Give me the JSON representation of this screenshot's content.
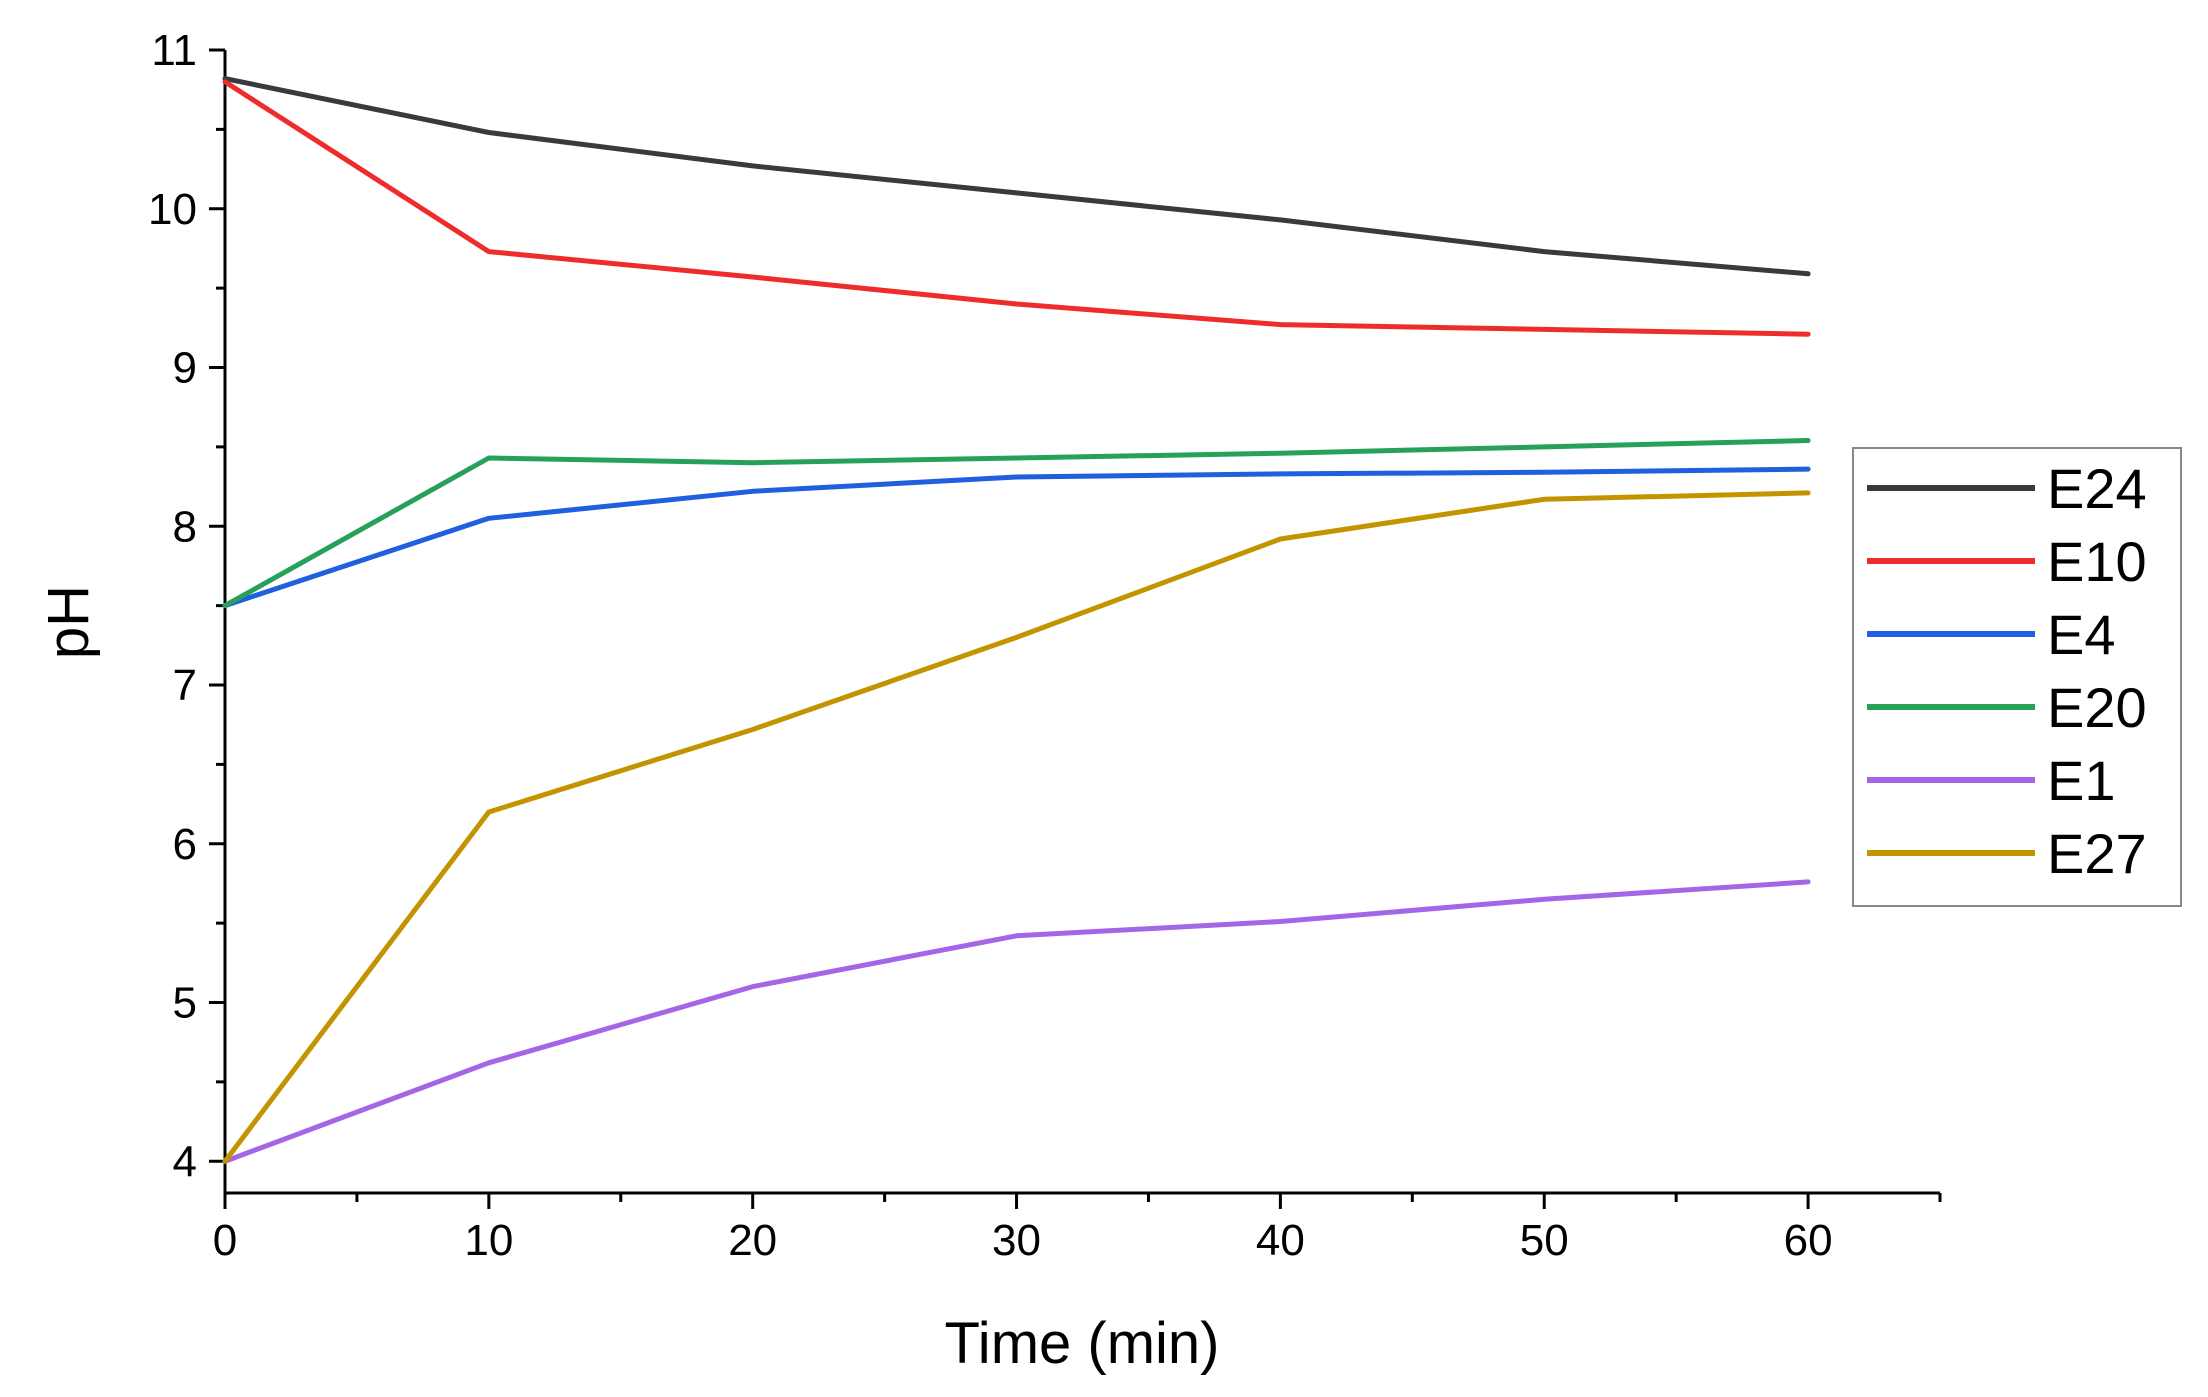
{
  "chart_data": {
    "type": "line",
    "title": "",
    "xlabel": "Time (min)",
    "ylabel": "pH",
    "x": [
      0,
      10,
      20,
      30,
      40,
      50,
      60
    ],
    "xlim": [
      0,
      65
    ],
    "ylim": [
      3.8,
      11
    ],
    "xticks": [
      0,
      10,
      20,
      30,
      40,
      50,
      60
    ],
    "xtick_labels": [
      "0",
      "10",
      "20",
      "30",
      "40",
      "50",
      "60"
    ],
    "yticks": [
      4,
      5,
      6,
      7,
      8,
      9,
      10,
      11
    ],
    "ytick_labels": [
      "4",
      "5",
      "6",
      "7",
      "8",
      "9",
      "10",
      "11"
    ],
    "legend_position": "right",
    "grid": false,
    "series": [
      {
        "name": "E24",
        "color": "#3a3a3a",
        "values": [
          10.82,
          10.48,
          10.27,
          10.1,
          9.93,
          9.73,
          9.59
        ]
      },
      {
        "name": "E10",
        "color": "#ee2c2c",
        "values": [
          10.8,
          9.73,
          9.57,
          9.4,
          9.27,
          9.24,
          9.21
        ]
      },
      {
        "name": "E4",
        "color": "#1f5fe0",
        "values": [
          7.5,
          8.05,
          8.22,
          8.31,
          8.33,
          8.34,
          8.36
        ]
      },
      {
        "name": "E20",
        "color": "#27a05a",
        "values": [
          7.5,
          8.43,
          8.4,
          8.43,
          8.46,
          8.5,
          8.54
        ]
      },
      {
        "name": "E1",
        "color": "#a466e6",
        "values": [
          4.0,
          4.62,
          5.1,
          5.42,
          5.51,
          5.65,
          5.76
        ]
      },
      {
        "name": "E27",
        "color": "#c49400",
        "values": [
          4.0,
          6.2,
          6.72,
          7.3,
          7.92,
          8.17,
          8.21
        ]
      }
    ]
  }
}
